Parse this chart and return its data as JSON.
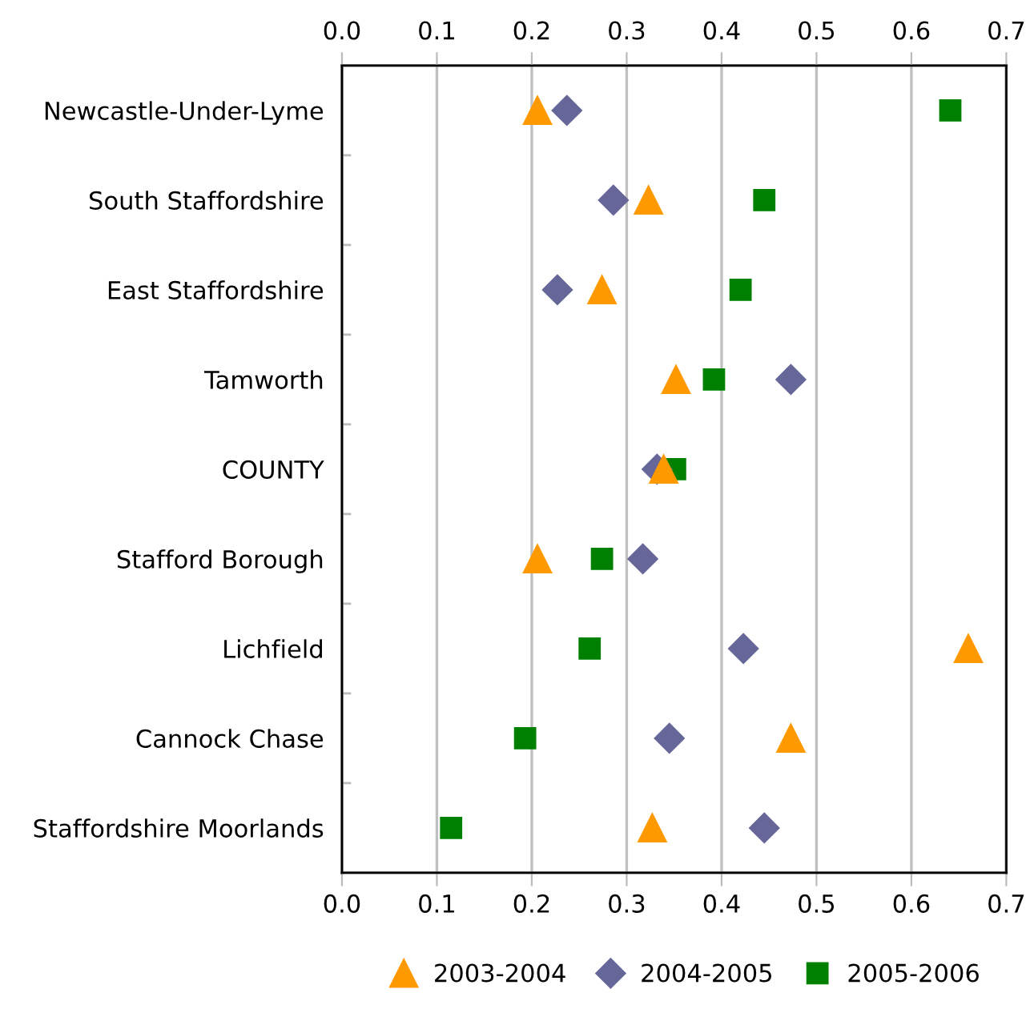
{
  "chart_data": {
    "type": "scatter",
    "orientation": "horizontal",
    "categories": [
      "Newcastle-Under-Lyme",
      "South Staffordshire",
      "East Staffordshire",
      "Tamworth",
      "COUNTY",
      "Stafford Borough",
      "Lichfield",
      "Cannock Chase",
      "Staffordshire Moorlands"
    ],
    "series": [
      {
        "name": "2003-2004",
        "color": "#ff9900",
        "marker": "triangle",
        "values": [
          0.206,
          0.323,
          0.274,
          0.352,
          0.339,
          0.206,
          0.66,
          0.473,
          0.327
        ]
      },
      {
        "name": "2004-2005",
        "color": "#666699",
        "marker": "diamond",
        "values": [
          0.237,
          0.286,
          0.227,
          0.473,
          0.332,
          0.317,
          0.423,
          0.345,
          0.445
        ]
      },
      {
        "name": "2005-2006",
        "color": "#008000",
        "marker": "square",
        "values": [
          0.641,
          0.445,
          0.42,
          0.392,
          0.351,
          0.274,
          0.261,
          0.193,
          0.115
        ]
      }
    ],
    "xlim": [
      0,
      0.7
    ],
    "xticks": [
      {
        "value": 0,
        "label": "0.0"
      },
      0.1,
      0.2,
      0.3,
      0.4,
      0.5,
      0.6,
      0.7
    ],
    "x2lim": [
      0,
      0.7
    ],
    "x2ticks": [
      {
        "value": 0,
        "label": "0.0"
      },
      0.1,
      0.2,
      0.3,
      0.4,
      0.5,
      0.6,
      0.7
    ],
    "grid": "x",
    "legend": "bottom"
  }
}
